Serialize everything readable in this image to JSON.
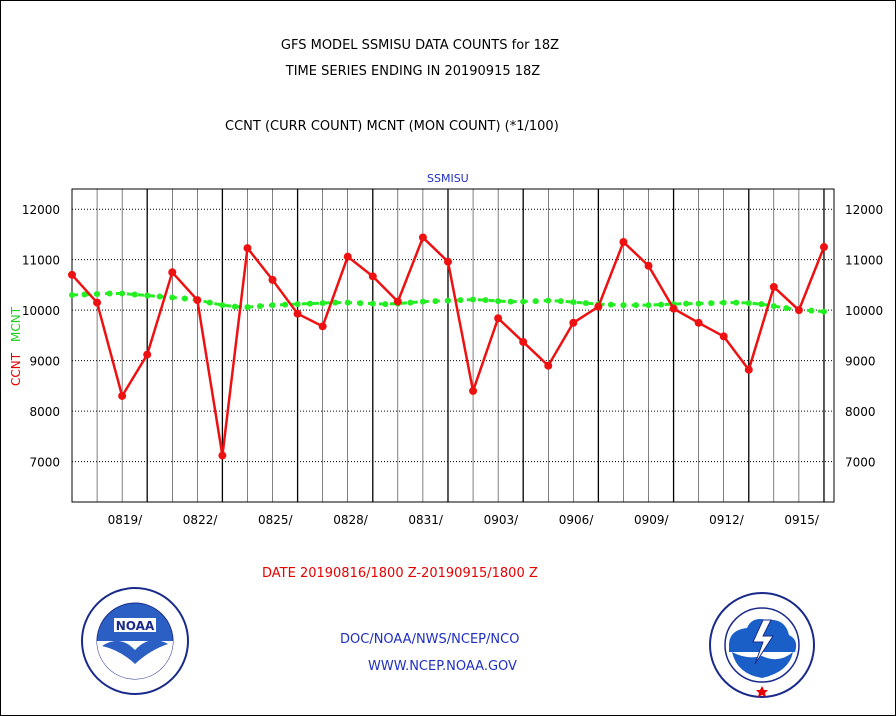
{
  "header": {
    "title_line1": "GFS MODEL SSMISU DATA COUNTS for 18Z",
    "title_line2": "TIME SERIES ENDING IN 20190915 18Z",
    "title_line3": "CCNT (CURR COUNT) MCNT (MON COUNT) (*1/100)"
  },
  "plot": {
    "subtitle": "SSMISU",
    "ylabel_curr": "CCNT",
    "ylabel_mon": "MCNT",
    "date_range": "DATE 20190816/1800 Z-20190915/1800 Z"
  },
  "footer": {
    "line1": "DOC/NOAA/NWS/NCEP/NCO",
    "line2": "WWW.NCEP.NOAA.GOV",
    "logo_left_text": "NOAA",
    "logo_left_ring": "NATIONAL OCEANIC AND ATMOSPHERIC ADMINISTRATION · U.S. DEPARTMENT OF COMMERCE",
    "logo_right_ring": "NATIONAL WEATHER SERVICE"
  },
  "colors": {
    "curr": "#ee1111",
    "mon": "#22ee22",
    "text_blue": "#1f2fc0",
    "text_red": "#e60000"
  },
  "chart_data": {
    "type": "line",
    "title": "GFS MODEL SSMISU DATA COUNTS for 18Z",
    "ylim": [
      6200,
      12400
    ],
    "y_ticks": [
      7000,
      8000,
      9000,
      10000,
      11000,
      12000
    ],
    "x_tick_labels": [
      "0819/",
      "0822/",
      "0825/",
      "0828/",
      "0831/",
      "0903/",
      "0906/",
      "0909/",
      "0912/",
      "0915/"
    ],
    "x_tick_positions": [
      3,
      6,
      9,
      12,
      15,
      18,
      21,
      24,
      27,
      30
    ],
    "x_domain": [
      0,
      30.4
    ],
    "grid": true,
    "series": [
      {
        "name": "CCNT",
        "x": [
          0,
          1,
          2,
          3,
          4,
          5,
          6,
          7,
          8,
          9,
          10,
          11,
          12,
          13,
          14,
          15,
          16,
          17,
          18,
          19,
          20,
          21,
          22,
          23,
          24,
          25,
          26,
          27,
          28,
          29,
          30
        ],
        "values": [
          10700,
          10150,
          8300,
          9120,
          10750,
          10200,
          7120,
          11230,
          10600,
          9930,
          9680,
          11060,
          10670,
          10170,
          11440,
          10960,
          8400,
          9840,
          9370,
          8900,
          9750,
          10070,
          11350,
          10880,
          10030,
          9750,
          9480,
          8820,
          10460,
          10000,
          11250
        ]
      },
      {
        "name": "MCNT",
        "x": [
          0,
          0.5,
          1,
          1.5,
          2,
          2.5,
          3,
          3.5,
          4,
          4.5,
          5,
          5.5,
          6,
          6.5,
          7,
          7.5,
          8,
          8.5,
          9,
          9.5,
          10,
          10.5,
          11,
          11.5,
          12,
          12.5,
          13,
          13.5,
          14,
          14.5,
          15,
          15.5,
          16,
          16.5,
          17,
          17.5,
          18,
          18.5,
          19,
          19.5,
          20,
          20.5,
          21,
          21.5,
          22,
          22.5,
          23,
          23.5,
          24,
          24.5,
          25,
          25.5,
          26,
          26.5,
          27,
          27.5,
          28,
          28.5,
          29,
          29.5,
          30
        ],
        "values": [
          10300,
          10310,
          10320,
          10330,
          10330,
          10310,
          10290,
          10270,
          10250,
          10230,
          10200,
          10150,
          10100,
          10070,
          10060,
          10080,
          10100,
          10110,
          10120,
          10130,
          10140,
          10150,
          10150,
          10140,
          10130,
          10120,
          10130,
          10150,
          10170,
          10180,
          10190,
          10200,
          10210,
          10200,
          10180,
          10170,
          10170,
          10180,
          10190,
          10180,
          10160,
          10140,
          10120,
          10110,
          10100,
          10100,
          10100,
          10110,
          10120,
          10130,
          10130,
          10140,
          10150,
          10150,
          10140,
          10120,
          10080,
          10040,
          10010,
          9990,
          9970
        ]
      }
    ]
  }
}
